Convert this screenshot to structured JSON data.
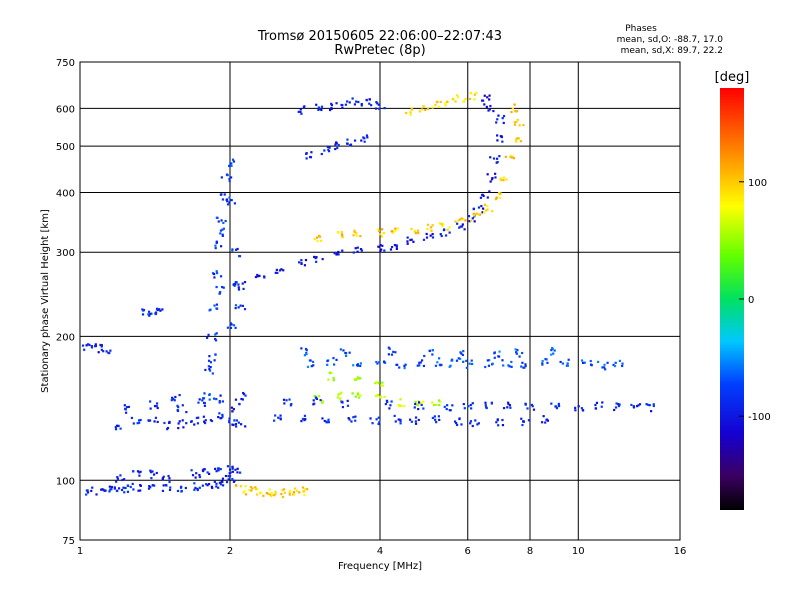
{
  "chart_data": {
    "type": "scatter",
    "title": "Tromsø 20150605 22:06:00–22:07:43",
    "subtitle": "RwPretec (8p)",
    "xlabel": "Frequency [MHz]",
    "ylabel": "Stationary phase Virtual Height [km]",
    "xscale": "log",
    "yscale": "log",
    "xlim": [
      1,
      16
    ],
    "ylim": [
      75,
      750
    ],
    "xticks": [
      1,
      2,
      4,
      6,
      8,
      10,
      16
    ],
    "xtick_labels": [
      "1",
      "2",
      "4",
      "6",
      "8",
      "10",
      "16"
    ],
    "yticks": [
      75,
      100,
      200,
      300,
      400,
      500,
      600,
      750
    ],
    "ytick_labels": [
      "75",
      "100",
      "200",
      "300",
      "400",
      "500",
      "600",
      "750"
    ],
    "grid": true,
    "phases_box": {
      "heading": "Phases",
      "line_o": "mean, sd,O: -88.7, 17.0",
      "line_x": "mean, sd,X: 89.7, 22.2"
    },
    "colorbar": {
      "label": "[deg]",
      "range": [
        -180,
        180
      ],
      "ticks": [
        100,
        0,
        -100
      ],
      "tick_labels": [
        "100",
        "0",
        "-100"
      ]
    },
    "series": [
      {
        "mode": "O",
        "phase": -88.7,
        "points": [
          [
            1.0,
            95
          ],
          [
            1.05,
            95
          ],
          [
            1.1,
            95
          ],
          [
            1.15,
            95.5
          ],
          [
            1.2,
            96
          ],
          [
            1.25,
            96
          ],
          [
            1.3,
            96.5
          ],
          [
            1.4,
            96
          ],
          [
            1.5,
            96
          ],
          [
            1.6,
            96.5
          ],
          [
            1.7,
            97
          ],
          [
            1.8,
            97
          ],
          [
            1.9,
            98
          ],
          [
            1.95,
            99
          ],
          [
            2.0,
            101
          ]
        ]
      },
      {
        "mode": "O",
        "phase": -90,
        "points": [
          [
            1.2,
            101
          ],
          [
            1.3,
            104
          ],
          [
            1.4,
            103
          ],
          [
            1.5,
            101
          ],
          [
            1.7,
            103
          ],
          [
            1.8,
            104
          ],
          [
            1.9,
            105
          ],
          [
            2.0,
            105
          ],
          [
            2.05,
            105
          ]
        ]
      },
      {
        "mode": "O",
        "phase": -95,
        "points": [
          [
            1.0,
            189
          ],
          [
            1.05,
            189
          ],
          [
            1.1,
            189
          ],
          [
            1.13,
            188
          ]
        ]
      },
      {
        "mode": "O",
        "phase": -85,
        "points": [
          [
            1.35,
            225
          ],
          [
            1.4,
            225
          ],
          [
            1.45,
            225
          ]
        ]
      },
      {
        "mode": "O",
        "phase": -90,
        "points": [
          [
            1.2,
            130
          ],
          [
            1.3,
            133
          ],
          [
            1.4,
            135
          ],
          [
            1.5,
            130
          ],
          [
            1.6,
            131
          ],
          [
            1.7,
            133
          ],
          [
            1.8,
            134
          ],
          [
            1.9,
            136
          ],
          [
            2.0,
            133
          ],
          [
            2.1,
            131
          ],
          [
            1.25,
            141
          ],
          [
            1.4,
            144
          ],
          [
            1.55,
            148
          ],
          [
            1.6,
            141
          ],
          [
            1.75,
            145
          ],
          [
            1.9,
            148
          ],
          [
            2.05,
            142
          ],
          [
            2.1,
            150
          ]
        ]
      },
      {
        "mode": "O",
        "phase": -80,
        "points": [
          [
            1.8,
            150
          ],
          [
            1.82,
            170
          ],
          [
            1.84,
            200
          ],
          [
            1.86,
            230
          ],
          [
            1.88,
            270
          ],
          [
            1.9,
            310
          ],
          [
            1.92,
            350
          ],
          [
            1.95,
            390
          ],
          [
            1.97,
            430
          ],
          [
            2.0,
            460
          ],
          [
            1.85,
            180
          ],
          [
            1.9,
            250
          ],
          [
            1.95,
            330
          ],
          [
            2.0,
            380
          ],
          [
            2.05,
            300
          ],
          [
            2.08,
            260
          ],
          [
            2.1,
            230
          ],
          [
            2.02,
            210
          ]
        ]
      },
      {
        "mode": "O",
        "phase": -100,
        "points": [
          [
            2.1,
            255
          ],
          [
            2.3,
            265
          ],
          [
            2.5,
            275
          ],
          [
            2.8,
            285
          ],
          [
            3.0,
            292
          ],
          [
            3.3,
            298
          ],
          [
            3.6,
            302
          ],
          [
            4.0,
            305
          ],
          [
            4.3,
            310
          ],
          [
            4.6,
            316
          ],
          [
            5.0,
            322
          ],
          [
            5.4,
            330
          ],
          [
            5.8,
            340
          ],
          [
            6.1,
            352
          ],
          [
            6.3,
            370
          ],
          [
            6.5,
            395
          ],
          [
            6.7,
            430
          ],
          [
            6.8,
            470
          ],
          [
            6.9,
            520
          ],
          [
            7.0,
            570
          ],
          [
            6.6,
            600
          ],
          [
            6.5,
            630
          ]
        ]
      },
      {
        "mode": "X",
        "phase": 100,
        "points": [
          [
            3.0,
            322
          ],
          [
            3.3,
            325
          ],
          [
            3.6,
            327
          ],
          [
            4.0,
            330
          ],
          [
            4.3,
            332
          ],
          [
            4.7,
            333
          ],
          [
            5.0,
            336
          ],
          [
            5.4,
            340
          ],
          [
            5.8,
            347
          ],
          [
            6.2,
            355
          ],
          [
            6.6,
            370
          ],
          [
            6.9,
            395
          ],
          [
            7.1,
            430
          ],
          [
            7.3,
            470
          ],
          [
            7.5,
            520
          ],
          [
            7.6,
            560
          ],
          [
            7.5,
            600
          ]
        ]
      },
      {
        "mode": "X",
        "phase": 95,
        "points": [
          [
            2.1,
            96
          ],
          [
            2.2,
            95
          ],
          [
            2.3,
            94.5
          ],
          [
            2.4,
            94.5
          ],
          [
            2.5,
            94
          ],
          [
            2.6,
            94
          ],
          [
            2.7,
            94.5
          ],
          [
            2.8,
            95
          ]
        ]
      },
      {
        "mode": "O",
        "phase": -95,
        "points": [
          [
            2.8,
            595
          ],
          [
            3.0,
            600
          ],
          [
            3.2,
            605
          ],
          [
            3.4,
            610
          ],
          [
            3.6,
            620
          ],
          [
            3.8,
            615
          ],
          [
            4.0,
            610
          ],
          [
            2.9,
            480
          ],
          [
            3.1,
            490
          ],
          [
            3.3,
            500
          ],
          [
            3.5,
            510
          ],
          [
            3.7,
            520
          ]
        ]
      },
      {
        "mode": "X",
        "phase": 90,
        "points": [
          [
            4.6,
            590
          ],
          [
            4.9,
            600
          ],
          [
            5.2,
            610
          ],
          [
            5.5,
            620
          ],
          [
            5.8,
            628
          ],
          [
            6.2,
            635
          ]
        ]
      },
      {
        "mode": "X",
        "phase": 60,
        "points": [
          [
            3.0,
            148
          ],
          [
            3.3,
            150
          ],
          [
            3.6,
            150
          ],
          [
            4.0,
            148
          ],
          [
            4.4,
            145
          ],
          [
            4.8,
            145
          ],
          [
            5.2,
            145
          ],
          [
            3.2,
            165
          ],
          [
            3.6,
            162
          ],
          [
            4.0,
            160
          ]
        ]
      },
      {
        "mode": "O",
        "phase": -90,
        "points": [
          [
            2.5,
            135
          ],
          [
            2.8,
            134
          ],
          [
            3.1,
            133
          ],
          [
            3.5,
            134
          ],
          [
            3.9,
            133
          ],
          [
            4.3,
            134
          ],
          [
            4.7,
            133
          ],
          [
            5.2,
            134
          ],
          [
            5.7,
            133
          ],
          [
            6.2,
            132
          ],
          [
            7.0,
            132
          ],
          [
            7.8,
            133
          ],
          [
            8.6,
            134
          ],
          [
            2.6,
            145
          ],
          [
            3.0,
            147
          ],
          [
            3.4,
            145
          ],
          [
            4.2,
            144
          ],
          [
            4.8,
            143
          ],
          [
            5.5,
            142
          ],
          [
            6.0,
            144
          ],
          [
            6.6,
            143
          ],
          [
            7.2,
            143
          ],
          [
            8.0,
            142
          ],
          [
            9.0,
            143
          ],
          [
            10.0,
            142
          ],
          [
            11.0,
            143
          ],
          [
            12.0,
            143
          ],
          [
            13.0,
            142
          ],
          [
            14.0,
            142
          ]
        ]
      },
      {
        "mode": "O",
        "phase": -70,
        "points": [
          [
            2.9,
            175
          ],
          [
            3.2,
            177
          ],
          [
            3.6,
            176
          ],
          [
            4.0,
            175
          ],
          [
            4.4,
            175
          ],
          [
            4.8,
            176
          ],
          [
            5.2,
            177
          ],
          [
            5.6,
            176
          ],
          [
            6.0,
            175
          ],
          [
            6.6,
            176
          ],
          [
            7.2,
            175
          ],
          [
            7.8,
            174
          ],
          [
            8.6,
            176
          ],
          [
            9.4,
            176
          ],
          [
            10.4,
            175
          ],
          [
            11.2,
            174
          ],
          [
            12.0,
            175
          ],
          [
            2.8,
            186
          ],
          [
            3.4,
            185
          ],
          [
            4.2,
            186
          ],
          [
            5.0,
            184
          ],
          [
            5.8,
            183
          ],
          [
            6.8,
            184
          ],
          [
            7.6,
            185
          ],
          [
            8.8,
            186
          ]
        ]
      }
    ]
  }
}
